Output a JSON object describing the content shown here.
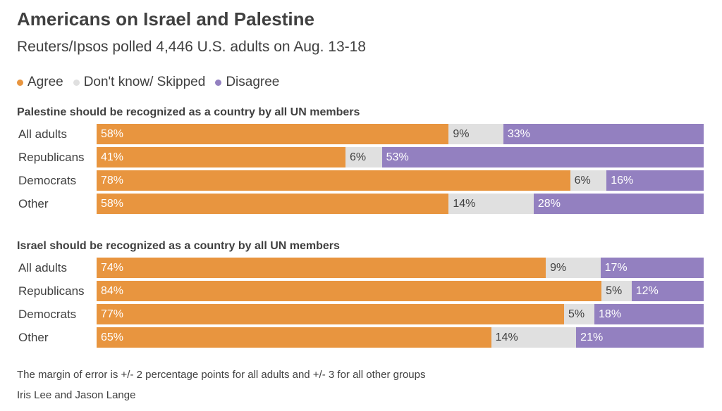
{
  "title": "Americans on Israel and Palestine",
  "subtitle": "Reuters/Ipsos polled 4,446 U.S. adults on Aug. 13-18",
  "colors": {
    "agree": "#e8953f",
    "dont_know": "#e0e0e0",
    "disagree": "#9380c0"
  },
  "legend": [
    {
      "key": "agree",
      "label": "Agree"
    },
    {
      "key": "dont_know",
      "label": "Don't know/ Skipped"
    },
    {
      "key": "disagree",
      "label": "Disagree"
    }
  ],
  "chart_data": {
    "type": "bar",
    "stacked": true,
    "orientation": "horizontal",
    "legend_position": "top-left",
    "series_keys": [
      "agree",
      "dont_know",
      "disagree"
    ],
    "panels": [
      {
        "title": "Palestine should be recognized as a country by all UN members",
        "rows": [
          {
            "label": "All adults",
            "agree": 58,
            "dont_know": 9,
            "disagree": 33
          },
          {
            "label": "Republicans",
            "agree": 41,
            "dont_know": 6,
            "disagree": 53
          },
          {
            "label": "Democrats",
            "agree": 78,
            "dont_know": 6,
            "disagree": 16
          },
          {
            "label": "Other",
            "agree": 58,
            "dont_know": 14,
            "disagree": 28
          }
        ]
      },
      {
        "title": "Israel should be recognized as a country by all UN members",
        "rows": [
          {
            "label": "All adults",
            "agree": 74,
            "dont_know": 9,
            "disagree": 17
          },
          {
            "label": "Republicans",
            "agree": 84,
            "dont_know": 5,
            "disagree": 12
          },
          {
            "label": "Democrats",
            "agree": 77,
            "dont_know": 5,
            "disagree": 18
          },
          {
            "label": "Other",
            "agree": 65,
            "dont_know": 14,
            "disagree": 21
          }
        ]
      }
    ]
  },
  "footnote": "The margin of error is +/- 2 percentage points for all adults and +/- 3 for all other groups",
  "credit": "Iris Lee and Jason Lange"
}
